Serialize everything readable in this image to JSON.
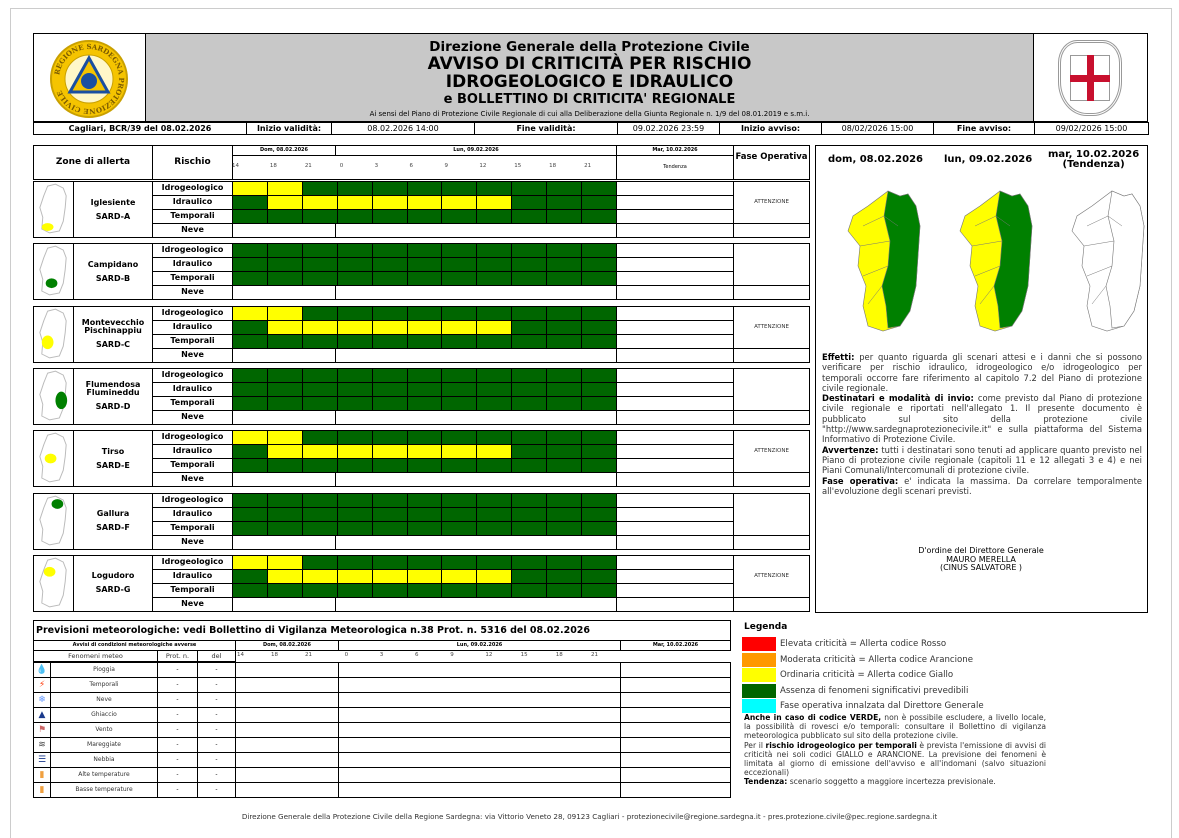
{
  "header": {
    "dept": "Direzione Generale della Protezione Civile",
    "title1": "AVVISO DI CRITICITÀ PER RISCHIO",
    "title2": "IDROGEOLOGICO E IDRAULICO",
    "title3": "e BOLLETTINO DI CRITICITA' REGIONALE",
    "subtitle": "Ai sensi del Piano di Protezione Civile Regionale di cui alla Deliberazione della Giunta Regionale n. 1/9 del 08.01.2019 e s.m.i.",
    "left_logo_text": "REGIONE SARDEGNA PROTEZIONE CIVILE"
  },
  "info": {
    "ref": "Cagliari, BCR/39 del 08.02.2026",
    "start_label": "Inizio validità:",
    "start": "08.02.2026 14:00",
    "end_label": "Fine validità:",
    "end": "09.02.2026 23:59",
    "alert_start_label": "Inizio avviso:",
    "alert_start": "08/02/2026 15:00",
    "alert_end_label": "Fine avviso:",
    "alert_end": "09/02/2026 15:00"
  },
  "table": {
    "zones_header": "Zone di allerta",
    "risk_header": "Rischio",
    "day1": "Dom, 08.02.2026",
    "day2": "Lun, 09.02.2026",
    "day3": "Mar, 10.02.2026",
    "hours": [
      "14",
      "18",
      "21",
      "0",
      "3",
      "6",
      "9",
      "12",
      "15",
      "18",
      "21"
    ],
    "trend": "Tendenza",
    "phase_header": "Fase Operativa",
    "risks": [
      "Idrogeologico",
      "Idraulico",
      "Temporali",
      "Neve"
    ],
    "colors": {
      "G": "#006600",
      "Y": "#ffff00"
    },
    "zones": [
      {
        "name": "Iglesiente",
        "code": "SARD-A",
        "map_color": "#ffff00",
        "phase": "ATTENZIONE",
        "rows": [
          "YYGGGGGGGGG",
          "GYYYYYYYGGG",
          "GGGGGGGGGGG"
        ]
      },
      {
        "name": "Campidano",
        "code": "SARD-B",
        "map_color": "#008000",
        "phase": "",
        "rows": [
          "GGGGGGGGGGG",
          "GGGGGGGGGGG",
          "GGGGGGGGGGG"
        ]
      },
      {
        "name": "Montevecchio Pischinappiu",
        "code": "SARD-C",
        "map_color": "#ffff00",
        "phase": "ATTENZIONE",
        "rows": [
          "YYGGGGGGGGG",
          "GYYYYYYYGGG",
          "GGGGGGGGGGG"
        ]
      },
      {
        "name": "Flumendosa Flumineddu",
        "code": "SARD-D",
        "map_color": "#008000",
        "phase": "",
        "rows": [
          "GGGGGGGGGGG",
          "GGGGGGGGGGG",
          "GGGGGGGGGGG"
        ]
      },
      {
        "name": "Tirso",
        "code": "SARD-E",
        "map_color": "#ffff00",
        "phase": "ATTENZIONE",
        "rows": [
          "YYGGGGGGGGG",
          "GYYYYYYYGGG",
          "GGGGGGGGGGG"
        ]
      },
      {
        "name": "Gallura",
        "code": "SARD-F",
        "map_color": "#008000",
        "phase": "",
        "rows": [
          "GGGGGGGGGGG",
          "GGGGGGGGGGG",
          "GGGGGGGGGGG"
        ]
      },
      {
        "name": "Logudoro",
        "code": "SARD-G",
        "map_color": "#ffff00",
        "phase": "ATTENZIONE",
        "rows": [
          "YYGGGGGGGGG",
          "GYYYYYYYGGG",
          "GGGGGGGGGGG"
        ]
      }
    ]
  },
  "maps": {
    "d1": "dom, 08.02.2026",
    "d2": "lun, 09.02.2026",
    "d3": "mar, 10.02.2026",
    "d3b": "(Tendenza)"
  },
  "notes": {
    "effetti_l": "Effetti:",
    "effetti": " per quanto riguarda gli scenari attesi e i danni che si possono verificare per rischio idraulico, idrogeologico e/o idrogeologico per temporali occorre fare riferimento al capitolo 7.2 del Piano di protezione civile regionale.",
    "dest_l": "Destinatari e modalità di invio:",
    "dest": " come previsto dal Piano di protezione civile regionale e riportati nell'allegato 1. Il presente documento è pubblicato sul sito della protezione civile \"http://www.sardegnaprotezionecivile.it\" e sulla piattaforma del Sistema Informativo di Protezione Civile.",
    "avv_l": "Avvertenze:",
    "avv": " tutti i destinatari sono tenuti ad applicare quanto previsto nel Piano di protezione civile regionale (capitoli 11 e 12 allegati 3 e 4) e nei Piani Comunali/Intercomunali di protezione civile.",
    "fase_l": "Fase operativa:",
    "fase": " e' indicata la massima. Da correlare temporalmente all'evoluzione degli scenari previsti.",
    "sign1": "D'ordine del Direttore Generale",
    "sign2": "MAURO MERELLA",
    "sign3": "(CINUS SALVATORE )"
  },
  "meteo": {
    "title": "Previsioni meteorologiche: vedi Bollettino di Vigilanza Meteorologica n.38 Prot. n. 5316 del 08.02.2026",
    "avvisi": "Avvisi di condizioni meteorologiche avverse",
    "day1": "Dom, 08.02.2026",
    "day2": "Lun, 09.02.2026",
    "day3": "Mar, 10.02.2026",
    "col_fen": "Fenomeni meteo",
    "col_prot": "Prot. n.",
    "col_del": "del",
    "rows": [
      {
        "icon": "rain-icon",
        "name": "Pioggia",
        "prot": "-",
        "del": "-"
      },
      {
        "icon": "thunderstorm-icon",
        "name": "Temporali",
        "prot": "-",
        "del": "-"
      },
      {
        "icon": "snow-icon",
        "name": "Neve",
        "prot": "-",
        "del": "-"
      },
      {
        "icon": "ice-icon",
        "name": "Ghiaccio",
        "prot": "-",
        "del": "-"
      },
      {
        "icon": "wind-icon",
        "name": "Vento",
        "prot": "-",
        "del": "-"
      },
      {
        "icon": "sea-storm-icon",
        "name": "Mareggiate",
        "prot": "-",
        "del": "-"
      },
      {
        "icon": "fog-icon",
        "name": "Nebbia",
        "prot": "-",
        "del": "-"
      },
      {
        "icon": "high-temp-icon",
        "name": "Alte temperature",
        "prot": "-",
        "del": "-"
      },
      {
        "icon": "low-temp-icon",
        "name": "Basse temperature",
        "prot": "-",
        "del": "-"
      }
    ]
  },
  "legend": {
    "title": "Legenda",
    "items": [
      {
        "color": "#ff0000",
        "label": "Elevata criticità = Allerta codice Rosso"
      },
      {
        "color": "#ff9900",
        "label": "Moderata criticità = Allerta codice Arancione"
      },
      {
        "color": "#ffff00",
        "label": "Ordinaria criticità = Allerta codice Giallo"
      },
      {
        "color": "#006600",
        "label": "Assenza di fenomeni significativi prevedibili"
      },
      {
        "color": "#00ffff",
        "label": "Fase operativa innalzata dal Direttore Generale"
      }
    ],
    "n1_b": "Anche in caso di codice VERDE,",
    "n1": " non è possibile escludere, a livello locale, la possibilità di rovesci e/o temporali: consultare il Bollettino di vigilanza meteorologica pubblicato sul sito della protezione civile.",
    "n2_a": "Per il ",
    "n2_b": "rischio idrogeologico per temporali",
    "n2": " è prevista l'emissione di avvisi di criticità nei soli codici GIALLO e ARANCIONE. La previsione dei fenomeni è limitata al giorno di emissione dell'avviso e all'indomani (salvo situazioni eccezionali)",
    "n3_b": "Tendenza:",
    "n3": " scenario soggetto a maggiore incertezza previsionale."
  },
  "footer": "Direzione Generale della Protezione Civile della Regione Sardegna: via Vittorio Veneto 28, 09123 Cagliari - protezionecivile@regione.sardegna.it - pres.protezione.civile@pec.regione.sardegna.it"
}
